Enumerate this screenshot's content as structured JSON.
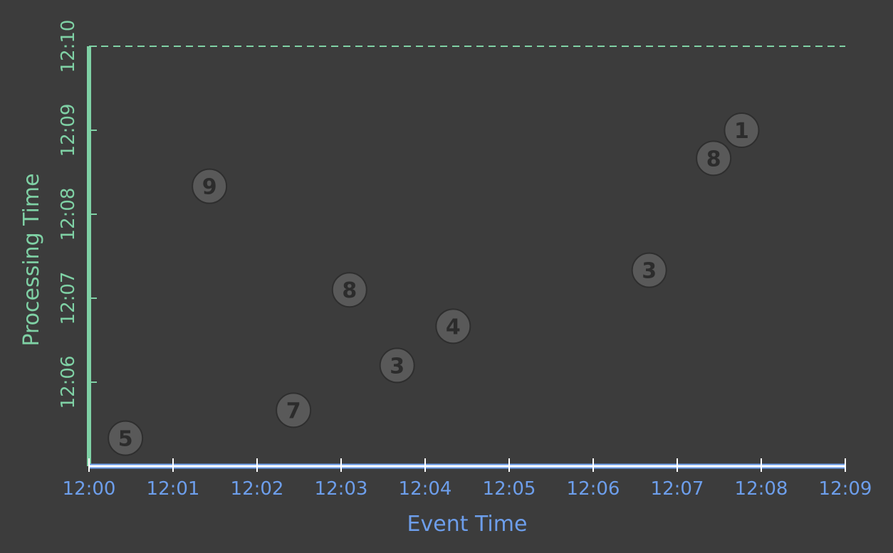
{
  "colors": {
    "background": "#3c3c3c",
    "x_axis": "#6d9eeb",
    "x_axis_line": "#ffffff",
    "y_axis": "#7fd1a5",
    "point_fill": "#595959",
    "point_stroke": "#2e2e2e",
    "point_label": "#2c2c2c"
  },
  "chart_data": {
    "type": "scatter",
    "xlabel": "Event Time",
    "ylabel": "Processing Time",
    "x_ticks": [
      "12:00",
      "12:01",
      "12:02",
      "12:03",
      "12:04",
      "12:05",
      "12:06",
      "12:07",
      "12:08",
      "12:09"
    ],
    "y_ticks": [
      "12:06",
      "12:07",
      "12:08",
      "12:09",
      "12:10"
    ],
    "xlim": [
      "12:00",
      "12:09"
    ],
    "ylim": [
      "12:05:00",
      "12:10:00"
    ],
    "grid": false,
    "reference_line": {
      "y": "12:10",
      "style": "dashed"
    },
    "points": [
      {
        "label": "5",
        "event_time": "12:00:26",
        "processing_time": "12:05:20"
      },
      {
        "label": "9",
        "event_time": "12:01:26",
        "processing_time": "12:08:20"
      },
      {
        "label": "7",
        "event_time": "12:02:26",
        "processing_time": "12:05:40"
      },
      {
        "label": "8",
        "event_time": "12:03:06",
        "processing_time": "12:07:06"
      },
      {
        "label": "3",
        "event_time": "12:03:40",
        "processing_time": "12:06:12"
      },
      {
        "label": "4",
        "event_time": "12:04:20",
        "processing_time": "12:06:40"
      },
      {
        "label": "3",
        "event_time": "12:06:40",
        "processing_time": "12:07:20"
      },
      {
        "label": "8",
        "event_time": "12:07:26",
        "processing_time": "12:08:40"
      },
      {
        "label": "1",
        "event_time": "12:07:46",
        "processing_time": "12:09:00"
      }
    ]
  }
}
